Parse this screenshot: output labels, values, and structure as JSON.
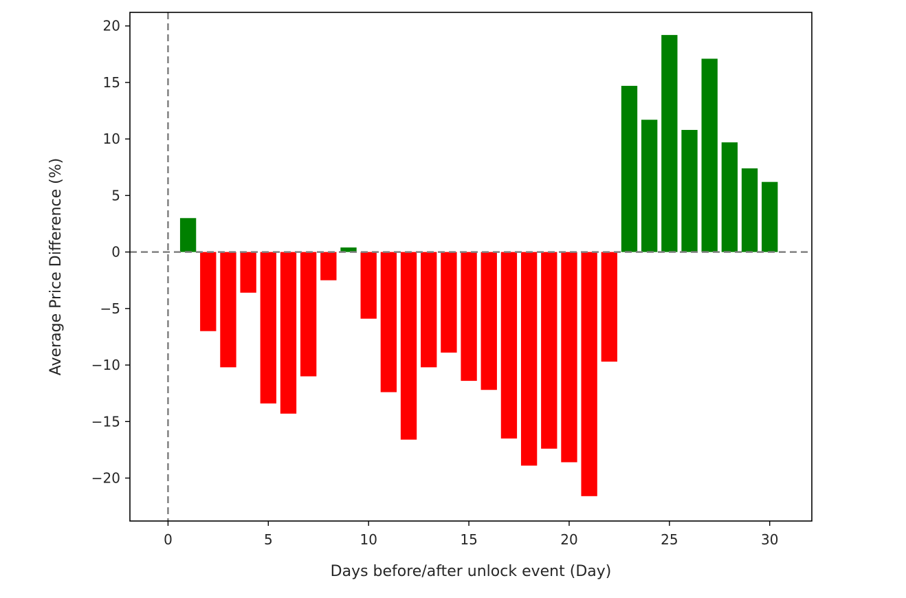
{
  "chart_data": {
    "type": "bar",
    "title": "",
    "xlabel": "Days before/after unlock event (Day)",
    "ylabel": "Average Price Difference (%)",
    "xlim": [
      -1.9,
      32.1
    ],
    "ylim": [
      -23.8,
      21.2
    ],
    "xticks": [
      0,
      5,
      10,
      15,
      20,
      25,
      30
    ],
    "yticks": [
      20,
      15,
      10,
      5,
      0,
      -5,
      -10,
      -15,
      -20
    ],
    "xtick_labels": [
      "0",
      "5",
      "10",
      "15",
      "20",
      "25",
      "30"
    ],
    "ytick_labels": [
      "20",
      "15",
      "10",
      "5",
      "0",
      "−5",
      "−10",
      "−15",
      "−20"
    ],
    "x": [
      1,
      2,
      3,
      4,
      5,
      6,
      7,
      8,
      9,
      10,
      11,
      12,
      13,
      14,
      15,
      16,
      17,
      18,
      19,
      20,
      21,
      22,
      23,
      24,
      25,
      26,
      27,
      28,
      29,
      30
    ],
    "values": [
      3.0,
      -7.0,
      -10.2,
      -3.6,
      -13.4,
      -14.3,
      -11.0,
      -2.5,
      0.4,
      -5.9,
      -12.4,
      -16.6,
      -10.2,
      -8.9,
      -11.4,
      -12.2,
      -16.5,
      -18.9,
      -17.4,
      -18.6,
      -21.6,
      -9.7,
      14.7,
      11.7,
      19.2,
      10.8,
      17.1,
      9.7,
      7.4,
      6.2
    ],
    "positive_color": "#008000",
    "negative_color": "#ff0000",
    "reference_lines": {
      "horizontal": 0,
      "vertical": 0,
      "color": "#808080",
      "style": "dashed"
    },
    "grid": false,
    "legend": "none"
  }
}
